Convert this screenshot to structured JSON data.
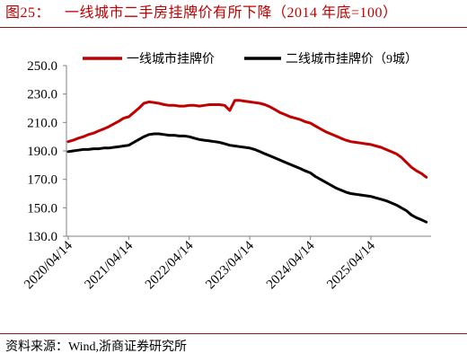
{
  "header": {
    "figure_label": "图25："
  },
  "chart_data": {
    "type": "line",
    "title": "一线城市二手房挂牌价有所下降（2014 年底=100）",
    "xlabel": "",
    "ylabel": "",
    "xlim": [
      "2020-04-14",
      "2026-04-01"
    ],
    "x_tick_labels": [
      "2020/04/14",
      "2021/04/14",
      "2022/04/14",
      "2023/04/14",
      "2024/04/14",
      "2025/04/14"
    ],
    "ylim": [
      130,
      250
    ],
    "y_tick_labels": [
      "130.0",
      "150.0",
      "170.0",
      "190.0",
      "210.0",
      "230.0",
      "250.0"
    ],
    "grid": false,
    "legend_position": "top",
    "x": [
      "2020-04-14",
      "2020-05-14",
      "2020-06-14",
      "2020-07-14",
      "2020-08-14",
      "2020-09-14",
      "2020-10-14",
      "2020-11-14",
      "2020-12-14",
      "2021-01-14",
      "2021-02-14",
      "2021-03-14",
      "2021-04-14",
      "2021-05-14",
      "2021-06-14",
      "2021-07-14",
      "2021-08-14",
      "2021-09-14",
      "2021-10-14",
      "2021-11-14",
      "2021-12-14",
      "2022-01-14",
      "2022-02-14",
      "2022-03-14",
      "2022-04-14",
      "2022-05-14",
      "2022-06-14",
      "2022-07-14",
      "2022-08-14",
      "2022-09-14",
      "2022-10-14",
      "2022-11-14",
      "2022-12-14",
      "2023-01-14",
      "2023-02-14",
      "2023-03-14",
      "2023-04-14",
      "2023-05-14",
      "2023-06-14",
      "2023-07-14",
      "2023-08-14",
      "2023-09-14",
      "2023-10-14",
      "2023-11-14",
      "2023-12-14",
      "2024-01-14",
      "2024-02-14",
      "2024-03-14",
      "2024-04-14",
      "2024-05-14",
      "2024-06-14",
      "2024-07-14",
      "2024-08-14",
      "2024-09-14",
      "2024-10-14",
      "2024-11-14",
      "2024-12-14",
      "2025-01-14",
      "2025-02-14",
      "2025-03-14",
      "2025-04-14",
      "2025-05-14",
      "2025-06-14",
      "2025-07-14",
      "2025-08-14",
      "2025-09-14",
      "2025-10-14",
      "2025-11-14",
      "2025-12-14",
      "2026-01-14",
      "2026-02-14",
      "2026-03-14"
    ],
    "series": [
      {
        "name": "一线城市挂牌价",
        "color": "#c00000",
        "values": [
          196.5,
          197.5,
          199,
          200,
          201.5,
          202.5,
          204,
          205.5,
          207,
          209,
          211,
          213,
          214,
          217,
          220,
          223.5,
          224.5,
          224,
          223.5,
          222.5,
          222,
          222,
          221.5,
          221.5,
          222,
          222,
          221.5,
          222,
          222.5,
          222.5,
          222.5,
          222,
          218.5,
          225.5,
          225.5,
          225,
          224.5,
          224,
          223.5,
          222.5,
          221,
          219,
          217,
          215.5,
          214,
          213,
          212,
          210.5,
          209.5,
          207.5,
          205.5,
          203.5,
          202,
          200.5,
          199,
          197.5,
          196.5,
          196,
          195.5,
          195,
          194.5,
          193.5,
          192.5,
          191,
          189.5,
          188,
          185.5,
          182,
          178.5,
          176,
          174,
          171.5
        ]
      },
      {
        "name": "二线城市挂牌价（9城）",
        "color": "#000000",
        "values": [
          189.5,
          190,
          190.5,
          191,
          191,
          191.5,
          191.5,
          192,
          192,
          192.5,
          193,
          193.5,
          194,
          196,
          198,
          200,
          201.5,
          202,
          202,
          201.5,
          201,
          201,
          200.5,
          200.5,
          200,
          199,
          198,
          197.5,
          197,
          196.5,
          196,
          195,
          194,
          193.5,
          193,
          192.5,
          192,
          191,
          189.5,
          188,
          186.5,
          185,
          183.5,
          182,
          180.5,
          179,
          177.5,
          176,
          174.5,
          172,
          170,
          168,
          166,
          164,
          162.5,
          161,
          160,
          159.5,
          159,
          158.5,
          158,
          157,
          156,
          155,
          153.5,
          152,
          150,
          148,
          145,
          143,
          141.5,
          140
        ]
      }
    ]
  },
  "footer": {
    "source": "资料来源：Wind,浙商证券研究所"
  },
  "colors": {
    "title": "#c00000",
    "rule": "#8b1a1a",
    "axis": "#808080"
  }
}
